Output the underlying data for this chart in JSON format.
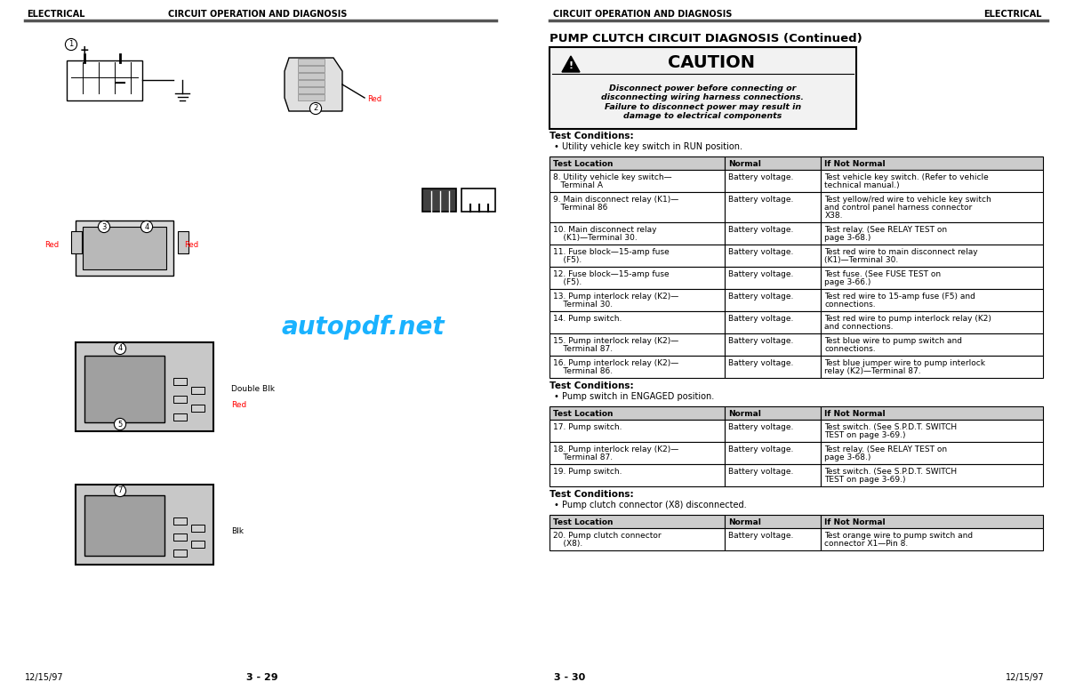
{
  "page_width": 12.0,
  "page_height": 7.76,
  "bg_color": "#ffffff",
  "header_left_left": "ELECTRICAL",
  "header_left_right": "CIRCUIT OPERATION AND DIAGNOSIS",
  "header_right_left": "CIRCUIT OPERATION AND DIAGNOSIS",
  "header_right_right": "ELECTRICAL",
  "right_title": "PUMP CLUTCH CIRCUIT DIAGNOSIS (Continued)",
  "caution_title": "CAUTION",
  "caution_text": "Disconnect power before connecting or\ndisconnecting wiring harness connections.\nFailure to disconnect power may result in\ndamage to electrical components",
  "test_conditions_1_label": "Test Conditions:",
  "test_conditions_1_bullet": "• Utility vehicle key switch in RUN position.",
  "table1_headers": [
    "Test Location",
    "Normal",
    "If Not Normal"
  ],
  "table1_rows": [
    [
      "8. Utility vehicle key switch—\n   Terminal A",
      "Battery voltage.",
      "Test vehicle key switch. (Refer to vehicle\ntechnical manual.)"
    ],
    [
      "9. Main disconnect relay (K1)—\n   Terminal 86",
      "Battery voltage.",
      "Test yellow/red wire to vehicle key switch\nand control panel harness connector\nX38."
    ],
    [
      "10. Main disconnect relay\n    (K1)—Terminal 30.",
      "Battery voltage.",
      "Test relay. (See RELAY TEST on\npage 3-68.)"
    ],
    [
      "11. Fuse block—15-amp fuse\n    (F5).",
      "Battery voltage.",
      "Test red wire to main disconnect relay\n(K1)—Terminal 30."
    ],
    [
      "12. Fuse block—15-amp fuse\n    (F5).",
      "Battery voltage.",
      "Test fuse. (See FUSE TEST on\npage 3-66.)"
    ],
    [
      "13. Pump interlock relay (K2)—\n    Terminal 30.",
      "Battery voltage.",
      "Test red wire to 15-amp fuse (F5) and\nconnections."
    ],
    [
      "14. Pump switch.",
      "Battery voltage.",
      "Test red wire to pump interlock relay (K2)\nand connections."
    ],
    [
      "15. Pump interlock relay (K2)—\n    Terminal 87.",
      "Battery voltage.",
      "Test blue wire to pump switch and\nconnections."
    ],
    [
      "16. Pump interlock relay (K2)—\n    Terminal 86.",
      "Battery voltage.",
      "Test blue jumper wire to pump interlock\nrelay (K2)—Terminal 87."
    ]
  ],
  "test_conditions_2_label": "Test Conditions:",
  "test_conditions_2_bullet": "• Pump switch in ENGAGED position.",
  "table2_headers": [
    "Test Location",
    "Normal",
    "If Not Normal"
  ],
  "table2_rows": [
    [
      "17. Pump switch.",
      "Battery voltage.",
      "Test switch. (See S.P.D.T. SWITCH\nTEST on page 3-69.)"
    ],
    [
      "18. Pump interlock relay (K2)—\n    Terminal 87.",
      "Battery voltage.",
      "Test relay. (See RELAY TEST on\npage 3-68.)"
    ],
    [
      "19. Pump switch.",
      "Battery voltage.",
      "Test switch. (See S.P.D.T. SWITCH\nTEST on page 3-69.)"
    ]
  ],
  "test_conditions_3_label": "Test Conditions:",
  "test_conditions_3_bullet": "• Pump clutch connector (X8) disconnected.",
  "table3_headers": [
    "Test Location",
    "Normal",
    "If Not Normal"
  ],
  "table3_rows": [
    [
      "20. Pump clutch connector\n    (X8).",
      "Battery voltage.",
      "Test orange wire to pump switch and\nconnector X1—Pin 8."
    ]
  ],
  "footer_left_page": "3 - 29",
  "footer_left_date": "12/15/97",
  "footer_right_page": "3 - 30",
  "footer_right_date": "12/15/97",
  "watermark_text": "autopdf.net",
  "watermark_color": "#00aaff"
}
